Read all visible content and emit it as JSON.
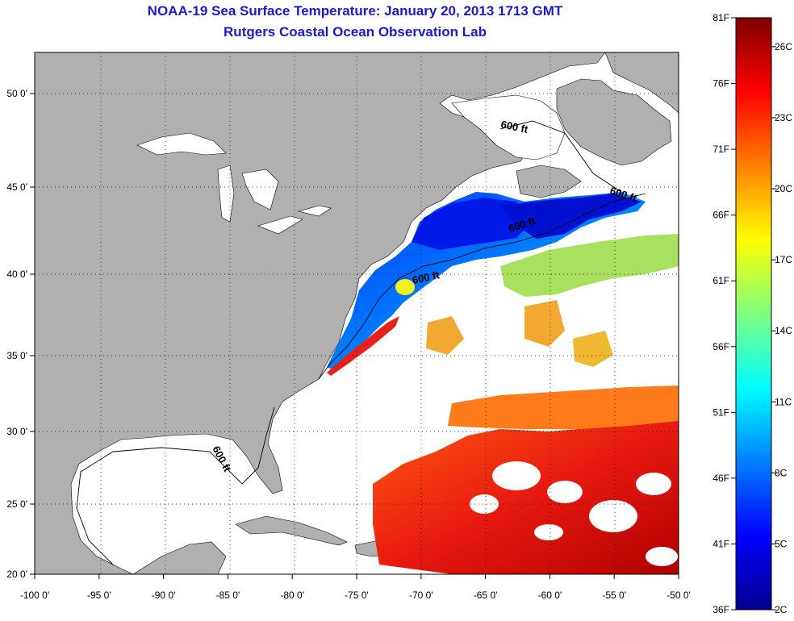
{
  "title": "NOAA-19 Sea Surface Temperature:  January 20, 2013 1713 GMT",
  "subtitle": "Rutgers Coastal Ocean Observation Lab",
  "map": {
    "lon_range": [
      -100,
      -50
    ],
    "lat_range": [
      20,
      52.5
    ],
    "lon_ticks": [
      "-100 0'",
      "-95 0'",
      "-90 0'",
      "-85 0'",
      "-80 0'",
      "-75 0'",
      "-70 0'",
      "-65 0'",
      "-60 0'",
      "-55 0'",
      "-50 0'"
    ],
    "lat_ticks": [
      "20 0'",
      "25 0'",
      "30 0'",
      "35 0'",
      "40 0'",
      "45 0'",
      "50 0'"
    ],
    "contour_label": "600 ft",
    "land_color": "#b0b0b0",
    "cloud_color": "#ffffff",
    "grid": "dotted"
  },
  "colorbar": {
    "f_labels": [
      "81F",
      "76F",
      "71F",
      "66F",
      "61F",
      "56F",
      "51F",
      "46F",
      "41F",
      "36F"
    ],
    "c_labels": [
      "26C",
      "23C",
      "20C",
      "17C",
      "14C",
      "11C",
      "8C",
      "5C",
      "2C"
    ],
    "colormap": "jet"
  }
}
